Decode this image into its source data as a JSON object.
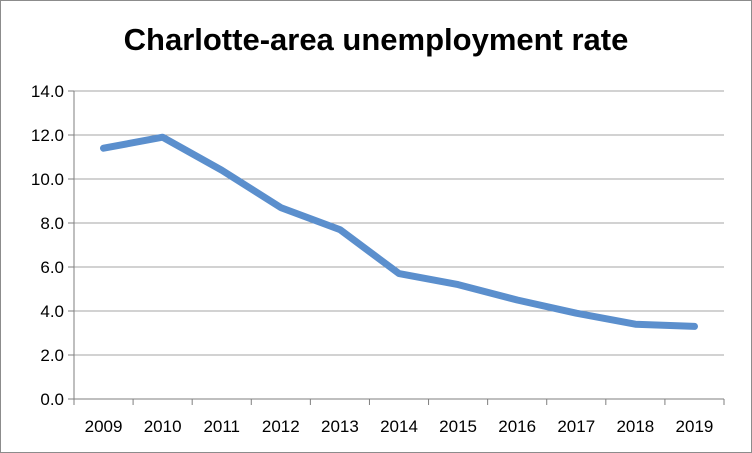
{
  "chart_data": {
    "type": "line",
    "title": "Charlotte-area unemployment rate",
    "xlabel": "",
    "ylabel": "",
    "x": [
      "2009",
      "2010",
      "2011",
      "2012",
      "2013",
      "2014",
      "2015",
      "2016",
      "2017",
      "2018",
      "2019"
    ],
    "series": [
      {
        "values": [
          11.4,
          11.9,
          10.4,
          8.7,
          7.7,
          5.7,
          5.2,
          4.5,
          3.9,
          3.4,
          3.3
        ]
      }
    ],
    "ylim": [
      0,
      14
    ],
    "yticks": [
      "0.0",
      "2.0",
      "4.0",
      "6.0",
      "8.0",
      "10.0",
      "12.0",
      "14.0"
    ],
    "grid": true,
    "legend": "none",
    "colors": {
      "line": "#5b8fcd",
      "grid": "#a6a6a6",
      "axis": "#7f7f7f"
    }
  }
}
